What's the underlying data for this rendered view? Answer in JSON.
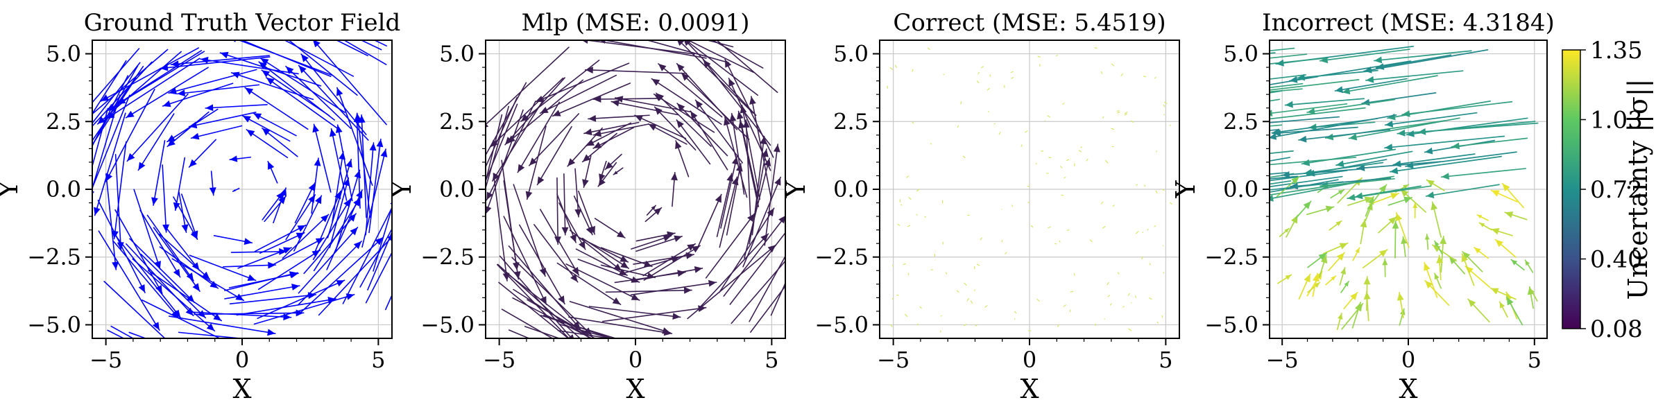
{
  "figure": {
    "colorbar": {
      "label": "Uncertainty ||σ||",
      "ticks": [
        "1.35",
        "1.03",
        "0.72",
        "0.40",
        "0.08"
      ],
      "range": [
        0.08,
        1.35
      ],
      "colormap": "viridis"
    }
  },
  "chart_data": [
    {
      "type": "quiver",
      "title": "Ground Truth Vector Field",
      "xlabel": "X",
      "ylabel": "Y",
      "xlim": [
        -5.5,
        5.5
      ],
      "ylim": [
        -5.5,
        5.5
      ],
      "xticks": [
        "−5",
        "0",
        "5"
      ],
      "yticks": [
        "5.0",
        "2.5",
        "0.0",
        "−2.5",
        "−5.0"
      ],
      "grid": true,
      "color": "#0000ff",
      "field": "counter-clockwise swirl with inward pull: u = -y - 0.3x, v = x - 0.3y",
      "n_arrows": 150,
      "arrow_scale": 0.72
    },
    {
      "type": "quiver",
      "title": "Mlp (MSE: 0.0091)",
      "xlabel": "X",
      "ylabel": "Y",
      "xlim": [
        -5.5,
        5.5
      ],
      "ylim": [
        -5.5,
        5.5
      ],
      "xticks": [
        "−5",
        "0",
        "5"
      ],
      "yticks": [
        "5.0",
        "2.5",
        "0.0",
        "−2.5",
        "−5.0"
      ],
      "grid": true,
      "color": "#3b1f52",
      "field": "counter-clockwise swirl with inward pull: u = -y - 0.3x, v = x - 0.3y",
      "n_arrows": 150,
      "arrow_scale": 0.72
    },
    {
      "type": "quiver",
      "title": "Correct (MSE: 5.4519)",
      "xlabel": "X",
      "ylabel": "Y",
      "xlim": [
        -5.5,
        5.5
      ],
      "ylim": [
        -5.5,
        5.5
      ],
      "xticks": [
        "−5",
        "0",
        "5"
      ],
      "yticks": [
        "5.0",
        "2.5",
        "0.0",
        "−2.5",
        "−5.0"
      ],
      "grid": true,
      "color": "#d8e56a",
      "field": "near-zero predicted vectors (tiny dots)",
      "n_arrows": 150,
      "arrow_scale": 0.03
    },
    {
      "type": "quiver",
      "title": "Incorrect (MSE: 4.3184)",
      "xlabel": "X",
      "ylabel": "Y",
      "xlim": [
        -5.5,
        5.5
      ],
      "ylim": [
        -5.5,
        5.5
      ],
      "xticks": [
        "−5",
        "0",
        "5"
      ],
      "yticks": [
        "5.0",
        "2.5",
        "0.0",
        "−2.5",
        "−5.0"
      ],
      "grid": true,
      "colored_by": "uncertainty",
      "field": "upper half: long arrows pointing left with low uncertainty; lower half: short arrows converging upward with high uncertainty",
      "n_arrows": 150
    }
  ]
}
